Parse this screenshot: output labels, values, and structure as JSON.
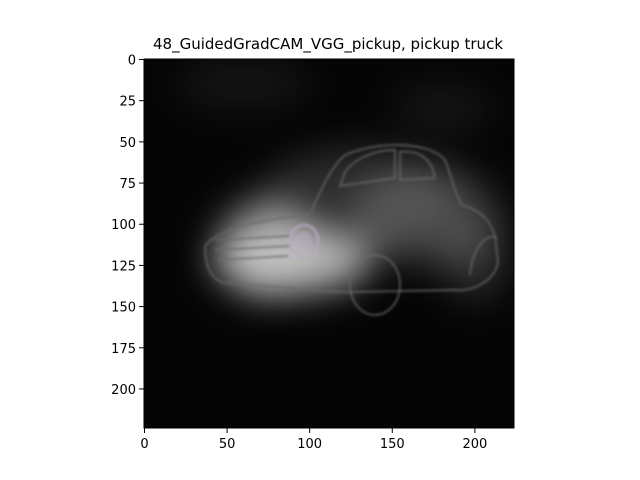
{
  "chart_data": {
    "type": "heatmap",
    "title": "48_GuidedGradCAM_VGG_pickup, pickup truck",
    "xlabel": "",
    "ylabel": "",
    "xlim": [
      0,
      224
    ],
    "ylim": [
      224,
      0
    ],
    "x_ticks": [
      0,
      50,
      100,
      150,
      200
    ],
    "y_ticks": [
      0,
      25,
      50,
      75,
      100,
      125,
      150,
      175,
      200
    ],
    "grid": false,
    "legend": "none",
    "background_color": "#050505",
    "highlight_color": "#cfcfcf",
    "outline_color": "#6a6a6a",
    "emblem_color": "#b9a9c8",
    "hotspots": [
      {
        "x": 90,
        "y": 122,
        "rx": 48,
        "ry": 20,
        "intensity": 0.85
      },
      {
        "x": 75,
        "y": 115,
        "rx": 30,
        "ry": 30,
        "intensity": 0.6
      },
      {
        "x": 170,
        "y": 95,
        "rx": 45,
        "ry": 30,
        "intensity": 0.25
      },
      {
        "x": 130,
        "y": 85,
        "rx": 60,
        "ry": 30,
        "intensity": 0.2
      },
      {
        "x": 200,
        "y": 120,
        "rx": 20,
        "ry": 25,
        "intensity": 0.2
      },
      {
        "x": 60,
        "y": 15,
        "rx": 40,
        "ry": 15,
        "intensity": 0.08
      },
      {
        "x": 180,
        "y": 30,
        "rx": 30,
        "ry": 15,
        "intensity": 0.08
      }
    ]
  }
}
